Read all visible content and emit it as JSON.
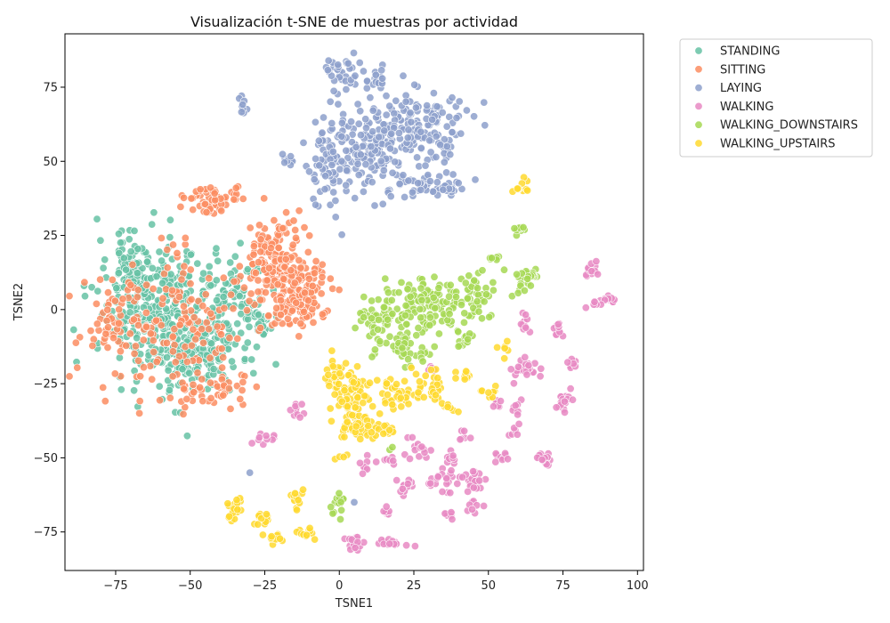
{
  "chart_data": {
    "type": "scatter",
    "title": "Visualización t-SNE de muestras por actividad",
    "xlabel": "TSNE1",
    "ylabel": "TSNE2",
    "xlim": [
      -92,
      102
    ],
    "ylim": [
      -88,
      93
    ],
    "xticks": [
      -75,
      -50,
      -25,
      0,
      25,
      50,
      75,
      100
    ],
    "yticks": [
      -75,
      -50,
      -25,
      0,
      25,
      50,
      75
    ],
    "xtick_labels": [
      "−75",
      "−50",
      "−25",
      "0",
      "25",
      "50",
      "75",
      "100"
    ],
    "ytick_labels": [
      "−75",
      "−50",
      "−25",
      "0",
      "25",
      "50",
      "75"
    ],
    "grid": false,
    "legend": {
      "placement": "outside-top-right"
    },
    "series": [
      {
        "name": "STANDING",
        "color": "#66c2a5",
        "clusters": [
          {
            "cx": -60,
            "cy": -2,
            "sx": 12,
            "sy": 14,
            "n": 320
          },
          {
            "cx": -45,
            "cy": -15,
            "sx": 10,
            "sy": 8,
            "n": 140
          },
          {
            "cx": -70,
            "cy": 15,
            "sx": 6,
            "sy": 6,
            "n": 70
          },
          {
            "cx": -35,
            "cy": 5,
            "sx": 7,
            "sy": 8,
            "n": 70
          },
          {
            "cx": -27,
            "cy": -3,
            "sx": 3,
            "sy": 4,
            "n": 25
          }
        ]
      },
      {
        "name": "SITTING",
        "color": "#fc8d62",
        "clusters": [
          {
            "cx": -20,
            "cy": 15,
            "sx": 7,
            "sy": 12,
            "n": 180
          },
          {
            "cx": -12,
            "cy": 5,
            "sx": 5,
            "sy": 7,
            "n": 110
          },
          {
            "cx": -43,
            "cy": 37,
            "sx": 6,
            "sy": 3,
            "n": 60
          },
          {
            "cx": -55,
            "cy": -5,
            "sx": 15,
            "sy": 14,
            "n": 160
          },
          {
            "cx": -75,
            "cy": -5,
            "sx": 5,
            "sy": 10,
            "n": 40
          },
          {
            "cx": -45,
            "cy": -27,
            "sx": 8,
            "sy": 4,
            "n": 40
          }
        ]
      },
      {
        "name": "LAYING",
        "color": "#8da0cb",
        "clusters": [
          {
            "cx": 27,
            "cy": 62,
            "sx": 9,
            "sy": 8,
            "n": 150
          },
          {
            "cx": 10,
            "cy": 55,
            "sx": 8,
            "sy": 10,
            "n": 140
          },
          {
            "cx": -3,
            "cy": 50,
            "sx": 5,
            "sy": 9,
            "n": 70
          },
          {
            "cx": 0,
            "cy": 80,
            "sx": 4,
            "sy": 4,
            "n": 35
          },
          {
            "cx": 30,
            "cy": 42,
            "sx": 8,
            "sy": 3,
            "n": 50
          },
          {
            "cx": -33,
            "cy": 68,
            "sx": 1.2,
            "sy": 2,
            "n": 10
          },
          {
            "cx": 12,
            "cy": 78,
            "sx": 3,
            "sy": 2,
            "n": 20
          },
          {
            "cx": -18,
            "cy": 51,
            "sx": 2,
            "sy": 1.5,
            "n": 8
          }
        ],
        "points": [
          [
            5,
            -65
          ],
          [
            -30,
            -55
          ]
        ]
      },
      {
        "name": "WALKING",
        "color": "#e78ac3",
        "clusters": [
          {
            "cx": 85,
            "cy": 13,
            "sx": 1.5,
            "sy": 2.5,
            "n": 14
          },
          {
            "cx": 90,
            "cy": 3,
            "sx": 1.5,
            "sy": 1.5,
            "n": 10
          },
          {
            "cx": 85,
            "cy": 2,
            "sx": 1.5,
            "sy": 1,
            "n": 6
          },
          {
            "cx": 74,
            "cy": -6,
            "sx": 2,
            "sy": 1.5,
            "n": 12
          },
          {
            "cx": 62,
            "cy": -5,
            "sx": 1.2,
            "sy": 3,
            "n": 10
          },
          {
            "cx": 62,
            "cy": -20,
            "sx": 3,
            "sy": 2.5,
            "n": 25
          },
          {
            "cx": 78,
            "cy": -18,
            "sx": 1.2,
            "sy": 1.5,
            "n": 8
          },
          {
            "cx": 75,
            "cy": -31,
            "sx": 2,
            "sy": 2.5,
            "n": 16
          },
          {
            "cx": 60,
            "cy": -33,
            "sx": 1.5,
            "sy": 1.5,
            "n": 8
          },
          {
            "cx": 53,
            "cy": -32,
            "sx": 1.5,
            "sy": 1.5,
            "n": 6
          },
          {
            "cx": 59,
            "cy": -41,
            "sx": 1.2,
            "sy": 1.5,
            "n": 6
          },
          {
            "cx": 69,
            "cy": -50,
            "sx": 2.5,
            "sy": 1.5,
            "n": 16
          },
          {
            "cx": 55,
            "cy": -50,
            "sx": 2,
            "sy": 1.5,
            "n": 10
          },
          {
            "cx": 45,
            "cy": -57,
            "sx": 2.5,
            "sy": 2.5,
            "n": 20
          },
          {
            "cx": 45,
            "cy": -66,
            "sx": 1.5,
            "sy": 1.5,
            "n": 8
          },
          {
            "cx": 38,
            "cy": -50,
            "sx": 1.5,
            "sy": 1.5,
            "n": 10
          },
          {
            "cx": 42,
            "cy": -43,
            "sx": 1.5,
            "sy": 1.2,
            "n": 6
          },
          {
            "cx": 35,
            "cy": -57,
            "sx": 3,
            "sy": 3,
            "n": 22
          },
          {
            "cx": 25,
            "cy": -47,
            "sx": 3,
            "sy": 2,
            "n": 14
          },
          {
            "cx": 22,
            "cy": -60,
            "sx": 2,
            "sy": 2,
            "n": 14
          },
          {
            "cx": 14,
            "cy": -51,
            "sx": 3,
            "sy": 1.5,
            "n": 10
          },
          {
            "cx": 8,
            "cy": -53,
            "sx": 1.2,
            "sy": 1.2,
            "n": 5
          },
          {
            "cx": 36,
            "cy": -69,
            "sx": 2,
            "sy": 1,
            "n": 8
          },
          {
            "cx": 16,
            "cy": -68,
            "sx": 1.2,
            "sy": 1.2,
            "n": 6
          },
          {
            "cx": 18,
            "cy": -79,
            "sx": 3,
            "sy": 1.5,
            "n": 14
          },
          {
            "cx": 5,
            "cy": -78,
            "sx": 2.5,
            "sy": 2,
            "n": 16
          },
          {
            "cx": -14,
            "cy": -34,
            "sx": 1.2,
            "sy": 2,
            "n": 10
          },
          {
            "cx": -25,
            "cy": -44,
            "sx": 2.5,
            "sy": 1.2,
            "n": 10
          },
          {
            "cx": 30,
            "cy": -20,
            "sx": 1.2,
            "sy": 1.2,
            "n": 4
          }
        ]
      },
      {
        "name": "WALKING_DOWNSTAIRS",
        "color": "#a6d854",
        "clusters": [
          {
            "cx": 30,
            "cy": 2,
            "sx": 10,
            "sy": 7,
            "n": 130
          },
          {
            "cx": 12,
            "cy": -2,
            "sx": 4,
            "sy": 5,
            "n": 40
          },
          {
            "cx": 22,
            "cy": -12,
            "sx": 5,
            "sy": 4,
            "n": 40
          },
          {
            "cx": 45,
            "cy": 5,
            "sx": 6,
            "sy": 5,
            "n": 40
          },
          {
            "cx": 63,
            "cy": 10,
            "sx": 3,
            "sy": 2.5,
            "n": 25
          },
          {
            "cx": 60,
            "cy": 27,
            "sx": 2,
            "sy": 1.5,
            "n": 10
          },
          {
            "cx": 52,
            "cy": 17,
            "sx": 2,
            "sy": 1,
            "n": 6
          },
          {
            "cx": 42,
            "cy": -10,
            "sx": 2,
            "sy": 2.5,
            "n": 12
          },
          {
            "cx": 0,
            "cy": -66,
            "sx": 1.5,
            "sy": 3,
            "n": 16
          },
          {
            "cx": 17,
            "cy": -47,
            "sx": 1,
            "sy": 1,
            "n": 2
          }
        ]
      },
      {
        "name": "WALKING_UPSTAIRS",
        "color": "#ffd92f",
        "clusters": [
          {
            "cx": 5,
            "cy": -30,
            "sx": 5,
            "sy": 6,
            "n": 70
          },
          {
            "cx": -1,
            "cy": -22,
            "sx": 3,
            "sy": 3,
            "n": 25
          },
          {
            "cx": 5,
            "cy": -40,
            "sx": 4,
            "sy": 3,
            "n": 30
          },
          {
            "cx": 18,
            "cy": -28,
            "sx": 4,
            "sy": 3,
            "n": 35
          },
          {
            "cx": 30,
            "cy": -26,
            "sx": 3,
            "sy": 3,
            "n": 30
          },
          {
            "cx": 15,
            "cy": -40,
            "sx": 3,
            "sy": 2,
            "n": 18
          },
          {
            "cx": 42,
            "cy": -22,
            "sx": 2,
            "sy": 1.5,
            "n": 10
          },
          {
            "cx": 38,
            "cy": -33,
            "sx": 2,
            "sy": 1.5,
            "n": 8
          },
          {
            "cx": 50,
            "cy": -28,
            "sx": 2,
            "sy": 1.5,
            "n": 8
          },
          {
            "cx": 55,
            "cy": -13,
            "sx": 2,
            "sy": 1.5,
            "n": 6
          },
          {
            "cx": 61,
            "cy": 42,
            "sx": 1.5,
            "sy": 1.5,
            "n": 10
          },
          {
            "cx": 1,
            "cy": -50,
            "sx": 1,
            "sy": 1,
            "n": 4
          },
          {
            "cx": -35,
            "cy": -67,
            "sx": 2,
            "sy": 3,
            "n": 22
          },
          {
            "cx": -26,
            "cy": -71,
            "sx": 2,
            "sy": 2,
            "n": 12
          },
          {
            "cx": -22,
            "cy": -77,
            "sx": 2,
            "sy": 1.5,
            "n": 12
          },
          {
            "cx": -14,
            "cy": -64,
            "sx": 1.5,
            "sy": 3,
            "n": 16
          },
          {
            "cx": -12,
            "cy": -76,
            "sx": 2,
            "sy": 1.5,
            "n": 12
          }
        ]
      }
    ]
  }
}
